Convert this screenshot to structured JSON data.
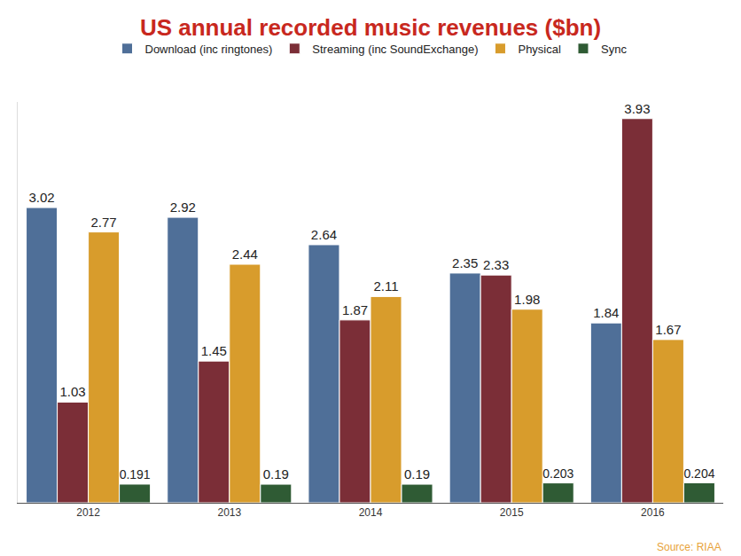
{
  "chart_data": {
    "type": "bar",
    "title": "US annual recorded music revenues ($bn)",
    "categories": [
      "2012",
      "2013",
      "2014",
      "2015",
      "2016"
    ],
    "series": [
      {
        "name": "Download (inc ringtones)",
        "color": "#4f6f98",
        "values": [
          3.02,
          2.92,
          2.64,
          2.35,
          1.84
        ]
      },
      {
        "name": "Streaming (inc SoundExchange)",
        "color": "#7b2e37",
        "values": [
          1.03,
          1.45,
          1.87,
          2.33,
          3.93
        ]
      },
      {
        "name": "Physical",
        "color": "#d89c2c",
        "values": [
          2.77,
          2.44,
          2.11,
          1.98,
          1.67
        ]
      },
      {
        "name": "Sync",
        "color": "#2f5b34",
        "values": [
          0.191,
          0.19,
          0.19,
          0.203,
          0.204
        ]
      }
    ],
    "ylim": [
      0,
      4.1
    ],
    "yticks": [],
    "grid": false,
    "legend": "top",
    "data_labels": true,
    "tick_labels": "x",
    "annotations": [
      "Source: RIAA"
    ]
  }
}
